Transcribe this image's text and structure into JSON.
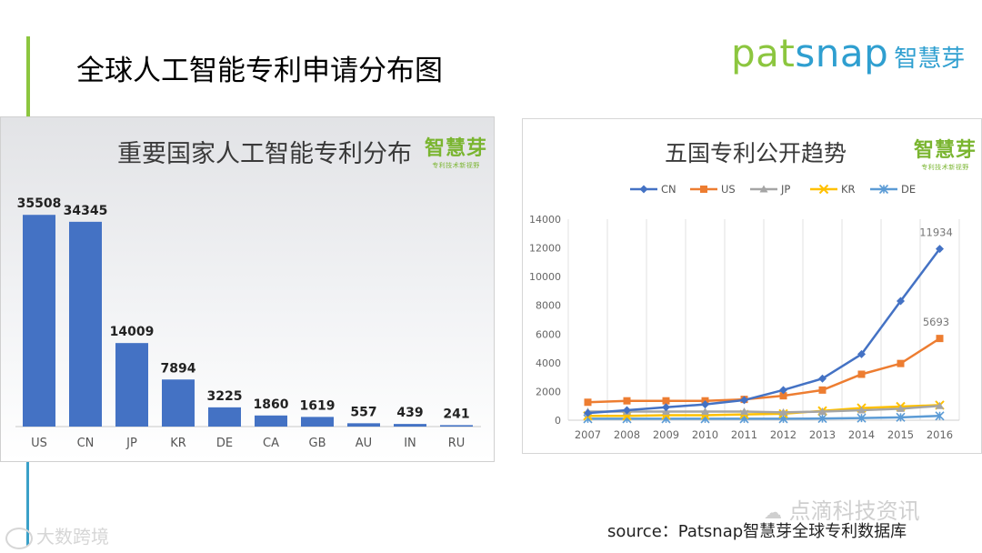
{
  "slide": {
    "title": "全球人工智能专利申请分布图",
    "brand_word_a": "pat",
    "brand_word_b": "snap",
    "brand_cn": "智慧芽",
    "source": "source：Patsnap智慧芽全球专利数据库",
    "watermark_right": "点滴科技资讯",
    "watermark_left": "大数跨境",
    "accent_green": "#8cc63f",
    "accent_blue": "#2f9fd0"
  },
  "chart_data": [
    {
      "type": "bar",
      "title": "重要国家人工智能专利分布",
      "brand_main": "智慧芽",
      "brand_sub": "专利技术新视野",
      "categories": [
        "US",
        "CN",
        "JP",
        "KR",
        "DE",
        "CA",
        "GB",
        "AU",
        "IN",
        "RU"
      ],
      "values": [
        35508,
        34345,
        14009,
        7894,
        3225,
        1860,
        1619,
        557,
        439,
        241
      ],
      "data_labels": [
        "35508",
        "34345",
        "14009",
        "7894",
        "3225",
        "1860",
        "1619",
        "557",
        "439",
        "241"
      ],
      "ylim": [
        0,
        36000
      ],
      "grid": false,
      "bar_color": "#4472c4"
    },
    {
      "type": "line",
      "title": "五国专利公开趋势",
      "brand_main": "智慧芽",
      "brand_sub": "专利技术新视野",
      "x": [
        "2007",
        "2008",
        "2009",
        "2010",
        "2011",
        "2012",
        "2013",
        "2014",
        "2015",
        "2016"
      ],
      "ylim": [
        0,
        14000
      ],
      "y_ticks": [
        "0",
        "2000",
        "4000",
        "6000",
        "8000",
        "10000",
        "12000",
        "14000"
      ],
      "grid": true,
      "legend_position": "top",
      "series": [
        {
          "name": "CN",
          "color": "#4472c4",
          "marker": "diamond",
          "values": [
            500,
            700,
            900,
            1100,
            1400,
            2100,
            2900,
            4600,
            8300,
            11934
          ]
        },
        {
          "name": "US",
          "color": "#ed7d31",
          "marker": "square",
          "values": [
            1250,
            1350,
            1350,
            1350,
            1450,
            1700,
            2100,
            3200,
            3950,
            5693
          ]
        },
        {
          "name": "JP",
          "color": "#a5a5a5",
          "marker": "triangle",
          "values": [
            600,
            600,
            600,
            600,
            600,
            550,
            600,
            700,
            800,
            1000
          ]
        },
        {
          "name": "KR",
          "color": "#ffc000",
          "marker": "x",
          "values": [
            300,
            300,
            350,
            350,
            400,
            450,
            650,
            850,
            950,
            1050
          ]
        },
        {
          "name": "DE",
          "color": "#5b9bd5",
          "marker": "star",
          "values": [
            100,
            100,
            100,
            100,
            100,
            100,
            120,
            150,
            200,
            300
          ]
        }
      ],
      "annotations": [
        {
          "series": "CN",
          "x": "2016",
          "text": "11934"
        },
        {
          "series": "US",
          "x": "2016",
          "text": "5693"
        }
      ]
    }
  ]
}
